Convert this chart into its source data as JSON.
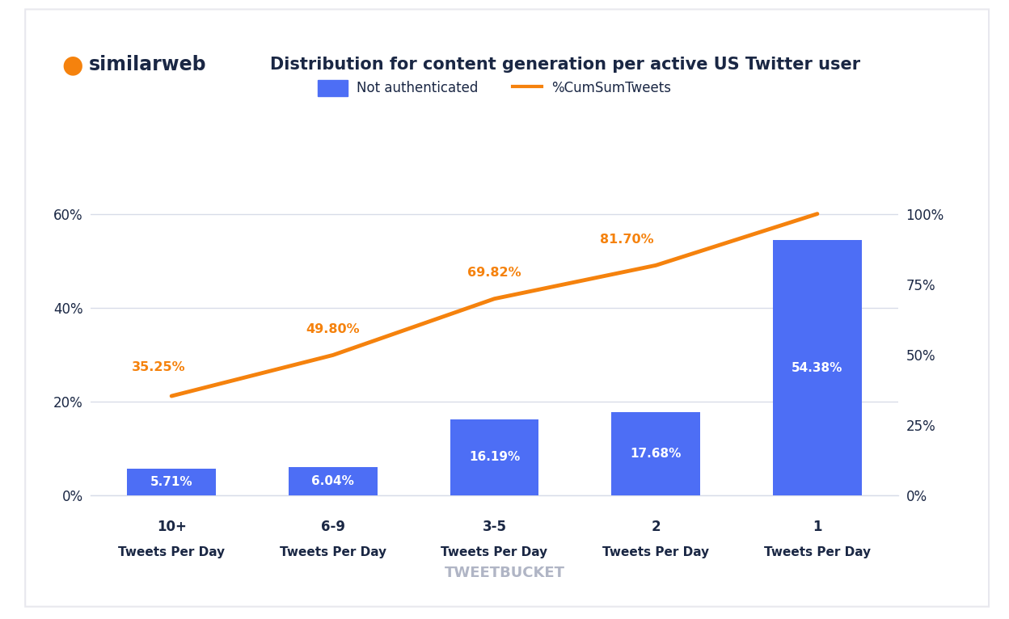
{
  "title": "Distribution for content generation per active US Twitter user",
  "cat_top": [
    "10+",
    "6-9",
    "3-5",
    "2",
    "1"
  ],
  "cat_bot": [
    "Tweets Per Day",
    "Tweets Per Day",
    "Tweets Per Day",
    "Tweets Per Day",
    "Tweets Per Day"
  ],
  "bar_values": [
    5.71,
    6.04,
    16.19,
    17.68,
    54.38
  ],
  "bar_labels": [
    "5.71%",
    "6.04%",
    "16.19%",
    "17.68%",
    "54.38%"
  ],
  "cum_values": [
    35.25,
    49.8,
    69.82,
    81.7,
    100.0
  ],
  "cum_labels": [
    "35.25%",
    "49.80%",
    "69.82%",
    "81.70%",
    ""
  ],
  "bar_color": "#4d6ef5",
  "line_color": "#f5820d",
  "background_color": "#ffffff",
  "grid_color": "#d8dce8",
  "left_yticks": [
    0,
    20,
    40,
    60
  ],
  "left_ylabels": [
    "0%",
    "20%",
    "40%",
    "60%"
  ],
  "right_yticks": [
    0,
    25,
    50,
    75,
    100
  ],
  "right_ylabels": [
    "0%",
    "25%",
    "50%",
    "75%",
    "100%"
  ],
  "ylim_left": [
    0,
    66
  ],
  "ylim_right": [
    0,
    110
  ],
  "legend_bar_label": "Not authenticated",
  "legend_line_label": "%CumSumTweets",
  "watermark": "TWEETBUCKET",
  "title_color": "#1a2744",
  "tick_color": "#1a2744",
  "bar_label_color": "#ffffff",
  "cum_label_color": "#f5820d",
  "watermark_color": "#b0b5c5",
  "similarweb_text_color": "#1a2744",
  "orange_logo_color": "#f5820d"
}
